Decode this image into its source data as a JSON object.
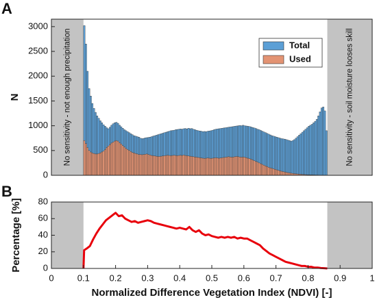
{
  "chart_data": [
    {
      "type": "histogram",
      "panel_label": "A",
      "ylabel": "N",
      "xlim": [
        0,
        1
      ],
      "ylim": [
        0,
        3150
      ],
      "yticks": [
        0,
        500,
        1000,
        1500,
        2000,
        2500,
        3000
      ],
      "legend": "upper right",
      "shaded_regions": [
        {
          "range": [
            0,
            0.1
          ],
          "label": "No sensitivity - not enough precipitation"
        },
        {
          "range": [
            0.86,
            1
          ],
          "label": "No sensitivity - soil moisture looses skill"
        }
      ],
      "bins": [
        0.1,
        0.105,
        0.11,
        0.115,
        0.12,
        0.125,
        0.13,
        0.135,
        0.14,
        0.145,
        0.15,
        0.155,
        0.16,
        0.165,
        0.17,
        0.175,
        0.18,
        0.185,
        0.19,
        0.195,
        0.2,
        0.205,
        0.21,
        0.215,
        0.22,
        0.225,
        0.23,
        0.235,
        0.24,
        0.245,
        0.25,
        0.255,
        0.26,
        0.265,
        0.27,
        0.275,
        0.28,
        0.285,
        0.29,
        0.295,
        0.3,
        0.305,
        0.31,
        0.315,
        0.32,
        0.325,
        0.33,
        0.335,
        0.34,
        0.345,
        0.35,
        0.355,
        0.36,
        0.365,
        0.37,
        0.375,
        0.38,
        0.385,
        0.39,
        0.395,
        0.4,
        0.405,
        0.41,
        0.415,
        0.42,
        0.425,
        0.43,
        0.435,
        0.44,
        0.445,
        0.45,
        0.455,
        0.46,
        0.465,
        0.47,
        0.475,
        0.48,
        0.485,
        0.49,
        0.495,
        0.5,
        0.505,
        0.51,
        0.515,
        0.52,
        0.525,
        0.53,
        0.535,
        0.54,
        0.545,
        0.55,
        0.555,
        0.56,
        0.565,
        0.57,
        0.575,
        0.58,
        0.585,
        0.59,
        0.595,
        0.6,
        0.605,
        0.61,
        0.615,
        0.62,
        0.625,
        0.63,
        0.635,
        0.64,
        0.645,
        0.65,
        0.655,
        0.66,
        0.665,
        0.67,
        0.675,
        0.68,
        0.685,
        0.69,
        0.695,
        0.7,
        0.705,
        0.71,
        0.715,
        0.72,
        0.725,
        0.73,
        0.735,
        0.74,
        0.745,
        0.75,
        0.755,
        0.76,
        0.765,
        0.77,
        0.775,
        0.78,
        0.785,
        0.79,
        0.795,
        0.8,
        0.805,
        0.81,
        0.815,
        0.82,
        0.825,
        0.83,
        0.835,
        0.84,
        0.845,
        0.85,
        0.855,
        0.86
      ],
      "series": [
        {
          "name": "Total",
          "color": "#5b9fd6",
          "values": [
            3020,
            2650,
            2100,
            1750,
            1600,
            1450,
            1350,
            1270,
            1200,
            1150,
            1100,
            1060,
            1020,
            990,
            960,
            940,
            970,
            1010,
            1040,
            1060,
            1070,
            1050,
            1010,
            980,
            950,
            920,
            900,
            880,
            860,
            840,
            820,
            800,
            790,
            780,
            770,
            750,
            740,
            745,
            755,
            760,
            765,
            770,
            780,
            790,
            800,
            810,
            820,
            830,
            840,
            850,
            860,
            870,
            880,
            890,
            900,
            905,
            910,
            920,
            925,
            930,
            935,
            930,
            940,
            945,
            935,
            950,
            940,
            945,
            930,
            920,
            910,
            900,
            895,
            890,
            880,
            885,
            880,
            890,
            895,
            900,
            910,
            920,
            930,
            935,
            940,
            945,
            950,
            955,
            960,
            965,
            970,
            975,
            980,
            985,
            990,
            995,
            1000,
            1005,
            1000,
            1010,
            1000,
            995,
            990,
            985,
            975,
            965,
            955,
            945,
            930,
            920,
            905,
            890,
            875,
            860,
            845,
            830,
            815,
            800,
            790,
            780,
            770,
            760,
            750,
            740,
            735,
            730,
            720,
            710,
            700,
            690,
            700,
            720,
            750,
            780,
            810,
            840,
            870,
            900,
            930,
            960,
            990,
            1010,
            1030,
            1060,
            1090,
            1130,
            1200,
            1280,
            1360,
            1380,
            1300,
            900
          ]
        },
        {
          "name": "Used",
          "color": "#e39373",
          "values": [
            700,
            640,
            560,
            500,
            470,
            450,
            440,
            430,
            430,
            440,
            450,
            470,
            490,
            520,
            560,
            590,
            620,
            650,
            670,
            690,
            700,
            690,
            660,
            630,
            600,
            570,
            540,
            520,
            500,
            480,
            460,
            450,
            440,
            430,
            420,
            420,
            415,
            420,
            425,
            430,
            420,
            410,
            400,
            395,
            390,
            385,
            380,
            380,
            385,
            390,
            395,
            400,
            405,
            400,
            395,
            400,
            405,
            400,
            395,
            400,
            405,
            400,
            410,
            400,
            395,
            390,
            385,
            380,
            375,
            370,
            365,
            360,
            355,
            350,
            345,
            340,
            345,
            350,
            345,
            340,
            345,
            350,
            355,
            350,
            345,
            350,
            355,
            360,
            365,
            370,
            375,
            370,
            365,
            370,
            375,
            380,
            375,
            370,
            365,
            370,
            365,
            355,
            345,
            335,
            325,
            310,
            295,
            280,
            265,
            250,
            235,
            220,
            205,
            190,
            175,
            160,
            150,
            140,
            130,
            120,
            110,
            100,
            90,
            82,
            75,
            68,
            60,
            54,
            48,
            42,
            38,
            34,
            30,
            27,
            24,
            21,
            18,
            16,
            14,
            12,
            11,
            10,
            9,
            8,
            7,
            6,
            5,
            4,
            3,
            3,
            2,
            2
          ]
        }
      ]
    },
    {
      "type": "line",
      "panel_label": "B",
      "ylabel": "Percentage [%]",
      "xlabel": "Normalized Difference Vegetation Index (NDVI) [-]",
      "xlim": [
        0,
        1
      ],
      "xticks": [
        0,
        0.1,
        0.2,
        0.3,
        0.4,
        0.5,
        0.6,
        0.7,
        0.8,
        0.9,
        1
      ],
      "ylim": [
        0,
        80
      ],
      "yticks": [
        0,
        20,
        40,
        60,
        80
      ],
      "shaded_regions": [
        {
          "range": [
            0,
            0.1
          ]
        },
        {
          "range": [
            0.86,
            1
          ]
        }
      ],
      "x": [
        0.1,
        0.102,
        0.11,
        0.12,
        0.13,
        0.14,
        0.15,
        0.16,
        0.17,
        0.18,
        0.19,
        0.2,
        0.21,
        0.22,
        0.23,
        0.24,
        0.25,
        0.26,
        0.27,
        0.28,
        0.29,
        0.3,
        0.31,
        0.32,
        0.33,
        0.34,
        0.35,
        0.36,
        0.37,
        0.38,
        0.39,
        0.4,
        0.41,
        0.42,
        0.43,
        0.44,
        0.45,
        0.46,
        0.47,
        0.48,
        0.49,
        0.5,
        0.51,
        0.52,
        0.53,
        0.54,
        0.55,
        0.56,
        0.57,
        0.58,
        0.59,
        0.6,
        0.61,
        0.62,
        0.63,
        0.64,
        0.65,
        0.66,
        0.67,
        0.68,
        0.69,
        0.7,
        0.71,
        0.72,
        0.73,
        0.74,
        0.75,
        0.76,
        0.77,
        0.78,
        0.79,
        0.8,
        0.81,
        0.82,
        0.83,
        0.84,
        0.85,
        0.86
      ],
      "series": [
        {
          "color": "#e8000b",
          "values": [
            0,
            22,
            24,
            27,
            35,
            42,
            48,
            53,
            58,
            61,
            64,
            67,
            63,
            64,
            60,
            58,
            56,
            57,
            55,
            56,
            57,
            58,
            57,
            55,
            54,
            53,
            52,
            51,
            50,
            49,
            48,
            49,
            48,
            47,
            50,
            46,
            44,
            46,
            42,
            40,
            41,
            39,
            38,
            37,
            38,
            37,
            38,
            37,
            38,
            36,
            37,
            36,
            36,
            34,
            32,
            30,
            28,
            24,
            21,
            18,
            16,
            14,
            12,
            10,
            8,
            7,
            6,
            5,
            4,
            3,
            3,
            2,
            2,
            1,
            1,
            0.5,
            0.3,
            0
          ]
        }
      ]
    }
  ]
}
